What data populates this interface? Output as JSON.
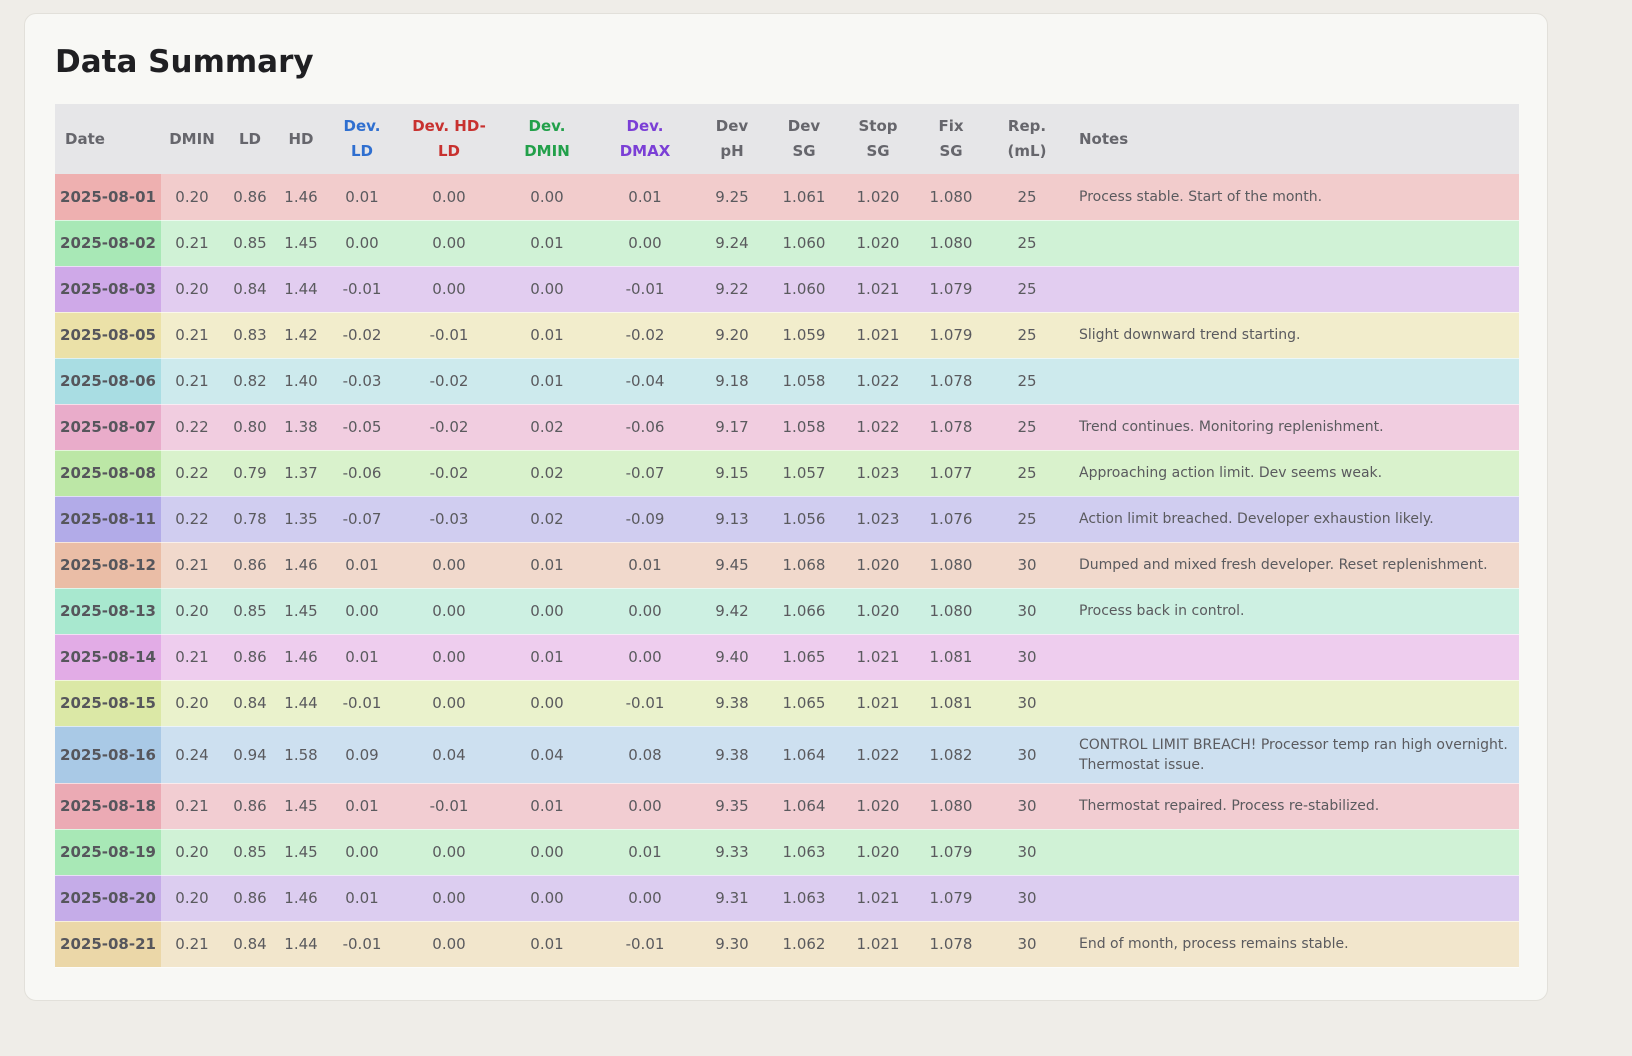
{
  "title": "Data Summary",
  "table": {
    "headers": [
      "Date",
      "DMIN",
      "LD",
      "HD",
      [
        "Dev.",
        "LD"
      ],
      [
        "Dev. HD-",
        "LD"
      ],
      [
        "Dev.",
        "DMIN"
      ],
      [
        "Dev.",
        "DMAX"
      ],
      [
        "Dev",
        "pH"
      ],
      [
        "Dev",
        "SG"
      ],
      [
        "Stop",
        "SG"
      ],
      [
        "Fix",
        "SG"
      ],
      [
        "Rep.",
        "(mL)"
      ],
      "Notes"
    ],
    "rows": [
      {
        "date": "2025-08-01",
        "values": [
          "0.20",
          "0.86",
          "1.46",
          "0.01",
          "0.00",
          "0.00",
          "0.01",
          "9.25",
          "1.061",
          "1.020",
          "1.080",
          "25"
        ],
        "notes": "Process stable. Start of the month."
      },
      {
        "date": "2025-08-02",
        "values": [
          "0.21",
          "0.85",
          "1.45",
          "0.00",
          "0.00",
          "0.01",
          "0.00",
          "9.24",
          "1.060",
          "1.020",
          "1.080",
          "25"
        ]
      },
      {
        "date": "2025-08-03",
        "values": [
          "0.20",
          "0.84",
          "1.44",
          "-0.01",
          "0.00",
          "0.00",
          "-0.01",
          "9.22",
          "1.060",
          "1.021",
          "1.079",
          "25"
        ]
      },
      {
        "date": "2025-08-05",
        "values": [
          "0.21",
          "0.83",
          "1.42",
          "-0.02",
          "-0.01",
          "0.01",
          "-0.02",
          "9.20",
          "1.059",
          "1.021",
          "1.079",
          "25"
        ],
        "notes": "Slight downward trend starting."
      },
      {
        "date": "2025-08-06",
        "values": [
          "0.21",
          "0.82",
          "1.40",
          "-0.03",
          "-0.02",
          "0.01",
          "-0.04",
          "9.18",
          "1.058",
          "1.022",
          "1.078",
          "25"
        ]
      },
      {
        "date": "2025-08-07",
        "values": [
          "0.22",
          "0.80",
          "1.38",
          "-0.05",
          "-0.02",
          "0.02",
          "-0.06",
          "9.17",
          "1.058",
          "1.022",
          "1.078",
          "25"
        ],
        "notes": "Trend continues. Monitoring replenishment."
      },
      {
        "date": "2025-08-08",
        "values": [
          "0.22",
          "0.79",
          "1.37",
          "-0.06",
          "-0.02",
          "0.02",
          "-0.07",
          "9.15",
          "1.057",
          "1.023",
          "1.077",
          "25"
        ],
        "notes": "Approaching action limit. Dev seems weak."
      },
      {
        "date": "2025-08-11",
        "values": [
          "0.22",
          "0.78",
          "1.35",
          "-0.07",
          "-0.03",
          "0.02",
          "-0.09",
          "9.13",
          "1.056",
          "1.023",
          "1.076",
          "25"
        ],
        "notes": "Action limit breached. Developer exhaustion likely."
      },
      {
        "date": "2025-08-12",
        "values": [
          "0.21",
          "0.86",
          "1.46",
          "0.01",
          "0.00",
          "0.01",
          "0.01",
          "9.45",
          "1.068",
          "1.020",
          "1.080",
          "30"
        ],
        "notes": "Dumped and mixed fresh developer. Reset replenishment."
      },
      {
        "date": "2025-08-13",
        "values": [
          "0.20",
          "0.85",
          "1.45",
          "0.00",
          "0.00",
          "0.00",
          "0.00",
          "9.42",
          "1.066",
          "1.020",
          "1.080",
          "30"
        ],
        "notes": "Process back in control."
      },
      {
        "date": "2025-08-14",
        "values": [
          "0.21",
          "0.86",
          "1.46",
          "0.01",
          "0.00",
          "0.01",
          "0.00",
          "9.40",
          "1.065",
          "1.021",
          "1.081",
          "30"
        ]
      },
      {
        "date": "2025-08-15",
        "values": [
          "0.20",
          "0.84",
          "1.44",
          "-0.01",
          "0.00",
          "0.00",
          "-0.01",
          "9.38",
          "1.065",
          "1.021",
          "1.081",
          "30"
        ]
      },
      {
        "date": "2025-08-16",
        "values": [
          "0.24",
          "0.94",
          "1.58",
          "0.09",
          "0.04",
          "0.04",
          "0.08",
          "9.38",
          "1.064",
          "1.022",
          "1.082",
          "30"
        ],
        "notes": "CONTROL LIMIT BREACH! Processor temp ran high overnight. Thermostat issue."
      },
      {
        "date": "2025-08-18",
        "values": [
          "0.21",
          "0.86",
          "1.45",
          "0.01",
          "-0.01",
          "0.01",
          "0.00",
          "9.35",
          "1.064",
          "1.020",
          "1.080",
          "30"
        ],
        "notes": "Thermostat repaired. Process re-stabilized."
      },
      {
        "date": "2025-08-19",
        "values": [
          "0.20",
          "0.85",
          "1.45",
          "0.00",
          "0.00",
          "0.00",
          "0.01",
          "9.33",
          "1.063",
          "1.020",
          "1.079",
          "30"
        ]
      },
      {
        "date": "2025-08-20",
        "values": [
          "0.20",
          "0.86",
          "1.46",
          "0.01",
          "0.00",
          "0.00",
          "0.00",
          "9.31",
          "1.063",
          "1.021",
          "1.079",
          "30"
        ]
      },
      {
        "date": "2025-08-21",
        "values": [
          "0.21",
          "0.84",
          "1.44",
          "-0.01",
          "0.00",
          "0.01",
          "-0.01",
          "9.30",
          "1.062",
          "1.021",
          "1.078",
          "30"
        ],
        "notes": "End of month, process remains stable."
      }
    ]
  }
}
